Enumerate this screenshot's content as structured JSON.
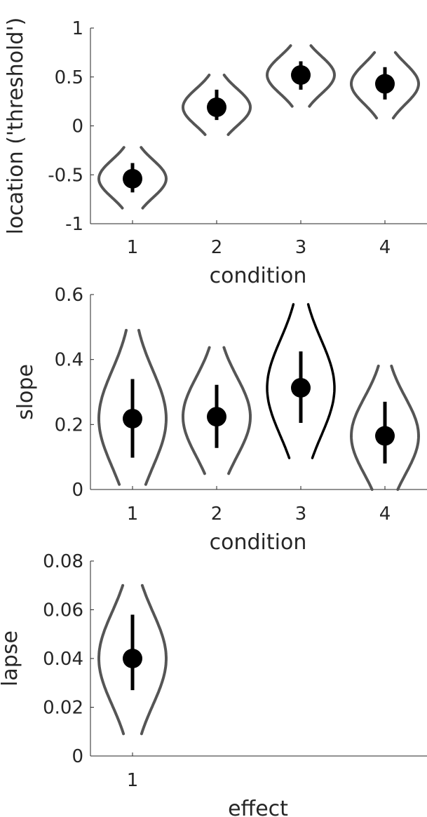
{
  "chart_data": [
    {
      "type": "violin",
      "xlabel": "condition",
      "ylabel": "location ('threshold')",
      "ylim": [
        -1,
        1
      ],
      "yticks": [
        -1,
        -0.5,
        0,
        0.5,
        1
      ],
      "ytick_labels": [
        "-1",
        "-0.5",
        "0",
        "0.5",
        "1"
      ],
      "categories": [
        "1",
        "2",
        "3",
        "4"
      ],
      "points": [
        {
          "x": 1,
          "mean": -0.54,
          "ci": [
            -0.68,
            -0.38
          ],
          "range": [
            -0.84,
            -0.22
          ],
          "style": "dashed"
        },
        {
          "x": 2,
          "mean": 0.19,
          "ci": [
            0.06,
            0.37
          ],
          "range": [
            -0.09,
            0.52
          ],
          "style": "dashed"
        },
        {
          "x": 3,
          "mean": 0.52,
          "ci": [
            0.37,
            0.66
          ],
          "range": [
            0.2,
            0.82
          ],
          "style": "dashed"
        },
        {
          "x": 4,
          "mean": 0.43,
          "ci": [
            0.27,
            0.6
          ],
          "range": [
            0.08,
            0.75
          ],
          "style": "dashed"
        }
      ]
    },
    {
      "type": "violin",
      "xlabel": "condition",
      "ylabel": "slope",
      "ylim": [
        0,
        0.6
      ],
      "yticks": [
        0,
        0.2,
        0.4,
        0.6
      ],
      "ytick_labels": [
        "0",
        "0.2",
        "0.4",
        "0.6"
      ],
      "categories": [
        "1",
        "2",
        "3",
        "4"
      ],
      "points": [
        {
          "x": 1,
          "mean": 0.218,
          "ci": [
            0.098,
            0.34
          ],
          "range": [
            0.015,
            0.49
          ],
          "style": "dashed"
        },
        {
          "x": 2,
          "mean": 0.224,
          "ci": [
            0.128,
            0.322
          ],
          "range": [
            0.047,
            0.437
          ],
          "style": "dashed"
        },
        {
          "x": 3,
          "mean": 0.313,
          "ci": [
            0.205,
            0.425
          ],
          "range": [
            0.097,
            0.57
          ],
          "style": "solid"
        },
        {
          "x": 4,
          "mean": 0.165,
          "ci": [
            0.08,
            0.27
          ],
          "range": [
            0.0,
            0.38
          ],
          "style": "dashed"
        }
      ]
    },
    {
      "type": "violin",
      "xlabel": "effect",
      "ylabel": "lapse",
      "ylim": [
        0,
        0.08
      ],
      "yticks": [
        0,
        0.02,
        0.04,
        0.06,
        0.08
      ],
      "ytick_labels": [
        "0",
        "0.02",
        "0.04",
        "0.06",
        "0.08"
      ],
      "categories": [
        "1"
      ],
      "xmax": 4,
      "points": [
        {
          "x": 1,
          "mean": 0.04,
          "ci": [
            0.027,
            0.058
          ],
          "range": [
            0.009,
            0.07
          ],
          "style": "dashed"
        }
      ]
    }
  ],
  "colors": {
    "mark": "#000000",
    "violin_dashed": "#555555",
    "axis": "#262626"
  }
}
